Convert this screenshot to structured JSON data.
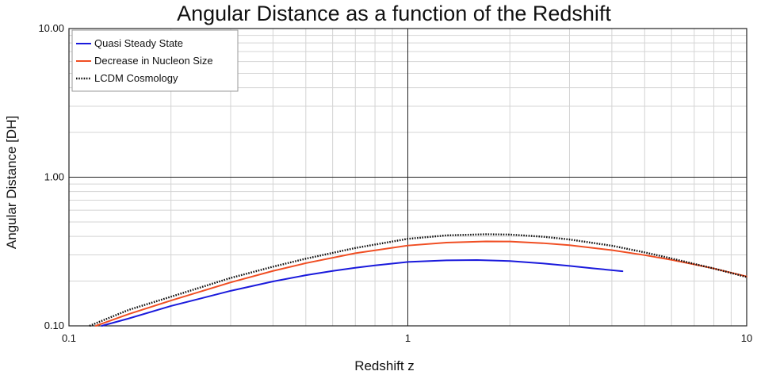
{
  "chart_data": {
    "type": "line",
    "title": "Angular Distance as a function of the Redshift",
    "xlabel": "Redshift  z",
    "ylabel": "Angular Distance [DH]",
    "x_scale": "log",
    "y_scale": "log",
    "xlim": [
      0.1,
      10
    ],
    "ylim": [
      0.1,
      10
    ],
    "x_ticks": [
      "0.1",
      "1",
      "10"
    ],
    "y_ticks": [
      "0.10",
      "1.00",
      "10.00"
    ],
    "grid": true,
    "legend_position": "top-left",
    "series": [
      {
        "name": "Quasi Steady State",
        "color": "#1a1adc",
        "style": "solid",
        "x": [
          0.125,
          0.15,
          0.2,
          0.3,
          0.4,
          0.5,
          0.6,
          0.7,
          0.8,
          1.0,
          1.3,
          1.6,
          2.0,
          2.5,
          3.0,
          3.5,
          4.3
        ],
        "y": [
          0.1,
          0.112,
          0.136,
          0.172,
          0.199,
          0.219,
          0.234,
          0.246,
          0.255,
          0.269,
          0.276,
          0.277,
          0.273,
          0.263,
          0.253,
          0.244,
          0.233
        ]
      },
      {
        "name": "Decrease in Nucleon Size",
        "color": "#f04e23",
        "style": "solid",
        "x": [
          0.12,
          0.15,
          0.2,
          0.3,
          0.4,
          0.5,
          0.7,
          1.0,
          1.3,
          1.7,
          2.0,
          2.5,
          3.0,
          4.0,
          5.0,
          6.0,
          7.0,
          8.0,
          10.0
        ],
        "y": [
          0.1,
          0.12,
          0.148,
          0.196,
          0.234,
          0.264,
          0.308,
          0.347,
          0.363,
          0.37,
          0.369,
          0.36,
          0.349,
          0.323,
          0.299,
          0.278,
          0.259,
          0.243,
          0.215
        ]
      },
      {
        "name": "LCDM Cosmology",
        "color": "#111111",
        "style": "dotted",
        "x": [
          0.115,
          0.15,
          0.2,
          0.3,
          0.4,
          0.5,
          0.7,
          1.0,
          1.3,
          1.7,
          2.0,
          2.5,
          3.0,
          4.0,
          5.0,
          6.0,
          7.0,
          8.0,
          10.0
        ],
        "y": [
          0.1,
          0.128,
          0.157,
          0.21,
          0.25,
          0.283,
          0.334,
          0.385,
          0.406,
          0.413,
          0.411,
          0.398,
          0.381,
          0.346,
          0.312,
          0.284,
          0.261,
          0.243,
          0.213
        ]
      }
    ]
  }
}
